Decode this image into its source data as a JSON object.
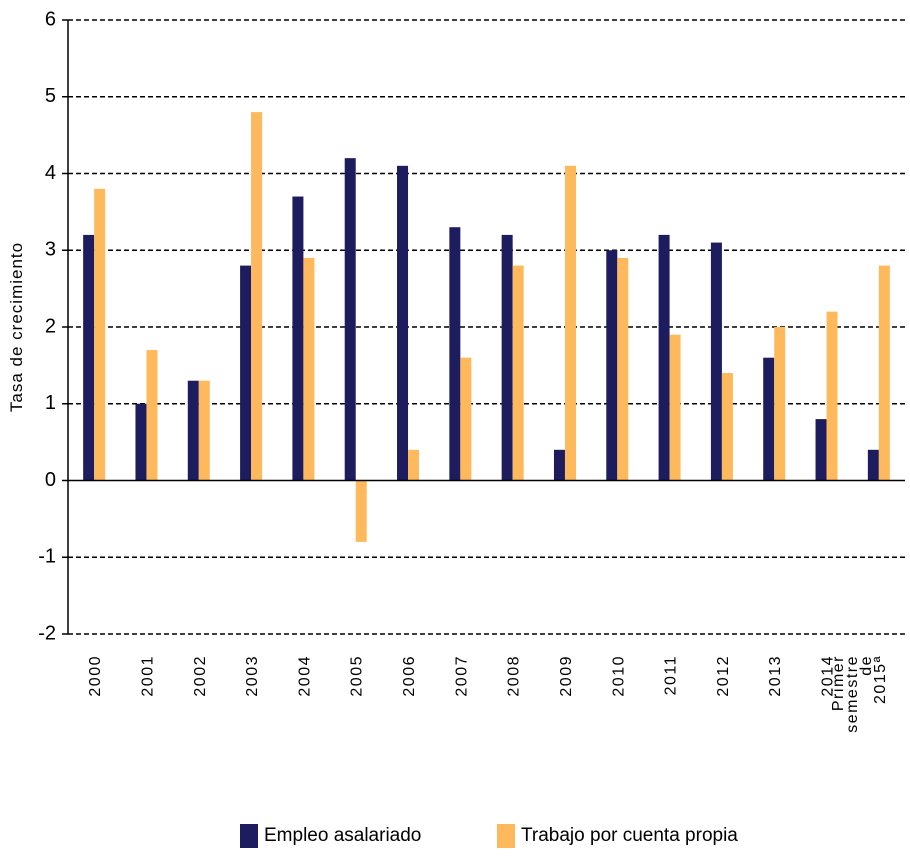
{
  "chart_data": {
    "type": "bar",
    "y_label": "Tasa de crecimiento",
    "categories": [
      "2000",
      "2001",
      "2002",
      "2003",
      "2004",
      "2005",
      "2006",
      "2007",
      "2008",
      "2009",
      "2010",
      "2011",
      "2012",
      "2013",
      "2014",
      "Primer semestre de 2015ª"
    ],
    "series": [
      {
        "name": "Empleo asalariado",
        "color": "#1c1c5e",
        "values": [
          3.2,
          1.0,
          1.3,
          2.8,
          3.7,
          4.2,
          4.1,
          3.3,
          3.2,
          0.4,
          3.0,
          3.2,
          3.1,
          1.6,
          0.8,
          0.4
        ]
      },
      {
        "name": "Trabajo por cuenta propia",
        "color": "#fdb95b",
        "values": [
          3.8,
          1.7,
          1.3,
          4.8,
          2.9,
          -0.8,
          0.4,
          1.6,
          2.8,
          4.1,
          2.9,
          1.9,
          1.4,
          2.0,
          2.2,
          2.8
        ]
      }
    ],
    "ylim": [
      -2,
      6
    ],
    "yticks": [
      -2,
      -1,
      0,
      1,
      2,
      3,
      4,
      5,
      6
    ],
    "grid": true
  }
}
